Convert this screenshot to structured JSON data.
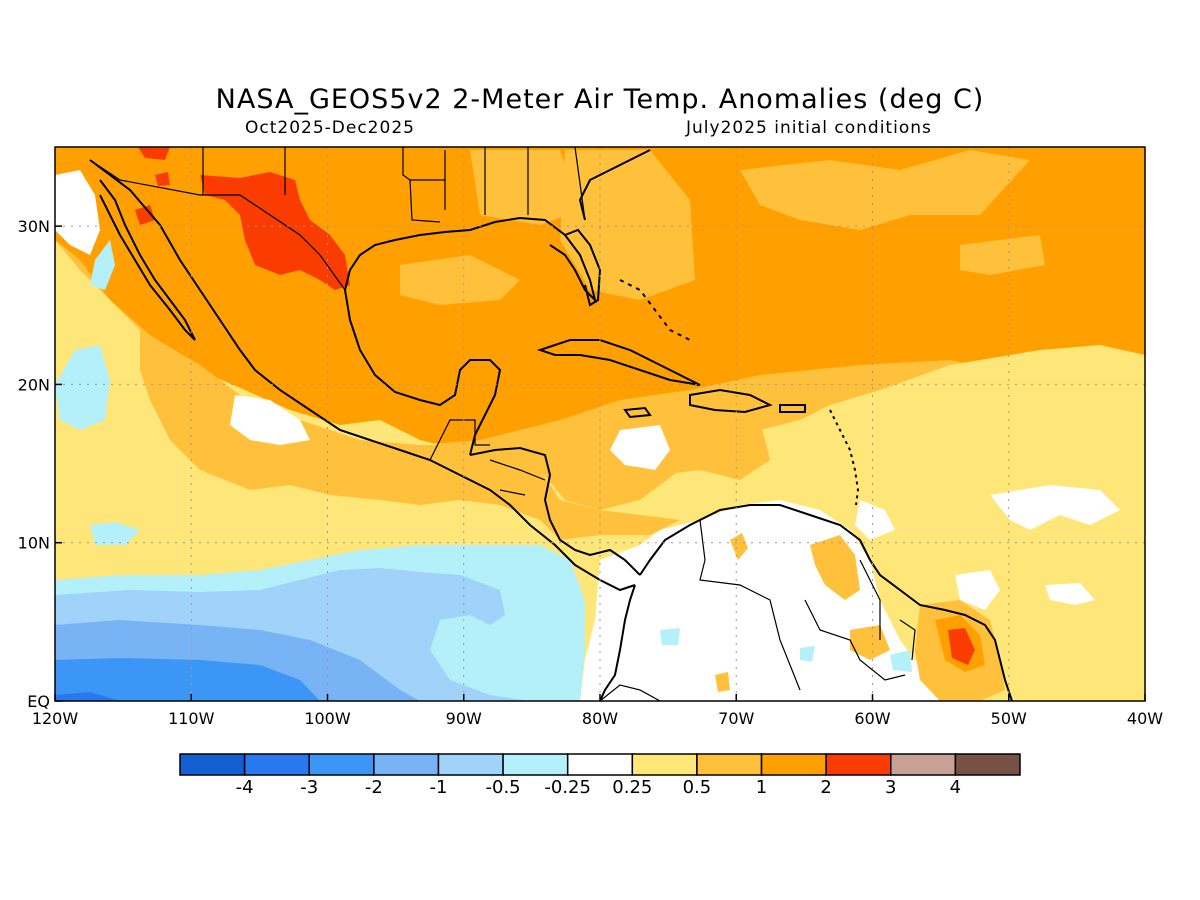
{
  "title": "NASA_GEOS5v2 2-Meter Air Temp. Anomalies (deg C)",
  "subtitle_left": "Oct2025-Dec2025",
  "subtitle_right": "July2025 initial conditions",
  "map": {
    "projection": "lat-lon",
    "lon_range": [
      -120,
      -40
    ],
    "lat_range": [
      0,
      35
    ],
    "grid": true,
    "lon_ticks": [
      "120W",
      "110W",
      "100W",
      "90W",
      "80W",
      "70W",
      "60W",
      "50W",
      "40W"
    ],
    "lat_ticks": [
      "EQ",
      "10N",
      "20N",
      "30N"
    ]
  },
  "legend": {
    "colors": [
      "#1460d2",
      "#2878f0",
      "#3c96f5",
      "#78b4f5",
      "#a0d2fa",
      "#b4f0fa",
      "#ffffff",
      "#ffe678",
      "#ffc03c",
      "#ffa000",
      "#fa3c00",
      "#c8a096",
      "#785046"
    ],
    "labels": [
      "-4",
      "-3",
      "-2",
      "-1",
      "-0.5",
      "-0.25",
      "0.25",
      "0.5",
      "1",
      "2",
      "3",
      "4"
    ]
  }
}
